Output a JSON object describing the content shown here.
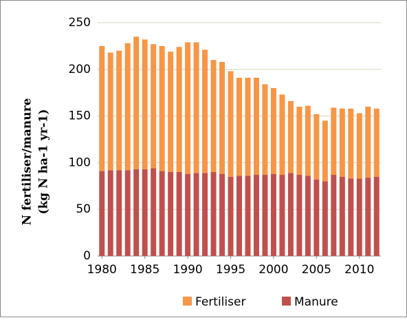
{
  "chart_data": {
    "type": "stacked_bar",
    "y_label": [
      "N fertiliser/manure",
      "(kg N ha-1 yr-1)"
    ],
    "x": [
      1980,
      1981,
      1982,
      1983,
      1984,
      1985,
      1986,
      1987,
      1988,
      1989,
      1990,
      1991,
      1992,
      1993,
      1994,
      1995,
      1996,
      1997,
      1998,
      1999,
      2000,
      2001,
      2002,
      2003,
      2004,
      2005,
      2006,
      2007,
      2008,
      2009,
      2010,
      2011,
      2012
    ],
    "xlim": [
      1979.5,
      2012.5
    ],
    "xticks": [
      1980,
      1985,
      1990,
      1995,
      2000,
      2005,
      2010
    ],
    "ylim": [
      0,
      250
    ],
    "yticks": [
      0,
      50,
      100,
      150,
      200,
      250
    ],
    "grid": true,
    "legend": "bottom",
    "series": [
      {
        "name": "Fertiliser",
        "color": "#f79646",
        "values": [
          134,
          126,
          128,
          136,
          142,
          139,
          133,
          134,
          129,
          134,
          141,
          140,
          132,
          120,
          120,
          113,
          105,
          105,
          104,
          97,
          92,
          86,
          77,
          73,
          75,
          70,
          65,
          72,
          73,
          75,
          70,
          76,
          73
        ]
      },
      {
        "name": "Manure",
        "color": "#c0504d",
        "values": [
          91,
          92,
          92,
          92,
          93,
          93,
          94,
          91,
          90,
          90,
          88,
          89,
          89,
          90,
          88,
          85,
          86,
          86,
          87,
          87,
          88,
          87,
          89,
          87,
          86,
          82,
          80,
          87,
          85,
          83,
          83,
          84,
          85
        ]
      }
    ]
  }
}
